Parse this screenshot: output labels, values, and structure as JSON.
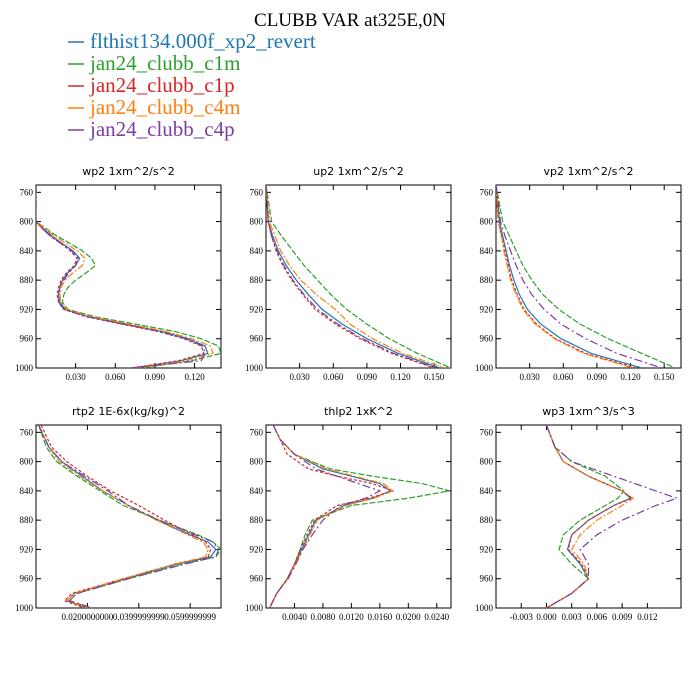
{
  "figure_title": "CLUBB VAR at325E,0N",
  "legend": [
    {
      "name": "flthist134.000f_xp2_revert",
      "color": "#1f77b4"
    },
    {
      "name": "jan24_clubb_c1m",
      "color": "#2ca02c"
    },
    {
      "name": "jan24_clubb_c1p",
      "color": "#d62728"
    },
    {
      "name": "jan24_clubb_c4m",
      "color": "#ff7f0e"
    },
    {
      "name": "jan24_clubb_c4p",
      "color": "#7b3f9e"
    }
  ],
  "chart_data": [
    {
      "type": "line",
      "title": "wp2  1xm^2/s^2",
      "xlim": [
        0,
        0.14
      ],
      "ylim": [
        750,
        1000
      ],
      "y_inverted": true,
      "xticks": [
        "0.030",
        "0.060",
        "0.090",
        "0.120"
      ],
      "yticks": [
        "760",
        "800",
        "840",
        "880",
        "920",
        "960",
        "1000"
      ],
      "y": [
        750,
        800,
        810,
        820,
        830,
        840,
        850,
        860,
        870,
        880,
        890,
        900,
        910,
        920,
        930,
        940,
        950,
        960,
        970,
        980,
        990,
        1000
      ],
      "series": [
        {
          "name": "flthist134.000f_xp2_revert",
          "values": [
            0,
            0,
            0.006,
            0.012,
            0.02,
            0.028,
            0.033,
            0.03,
            0.024,
            0.02,
            0.018,
            0.017,
            0.018,
            0.022,
            0.04,
            0.068,
            0.095,
            0.115,
            0.128,
            0.13,
            0.11,
            0.075
          ]
        },
        {
          "name": "jan24_clubb_c1m",
          "values": [
            0,
            0,
            0.008,
            0.016,
            0.026,
            0.035,
            0.042,
            0.045,
            0.038,
            0.03,
            0.024,
            0.021,
            0.02,
            0.024,
            0.045,
            0.075,
            0.105,
            0.125,
            0.138,
            0.14,
            0.118,
            0.08
          ]
        },
        {
          "name": "jan24_clubb_c1p",
          "values": [
            0,
            0,
            0.005,
            0.011,
            0.019,
            0.026,
            0.031,
            0.029,
            0.023,
            0.019,
            0.017,
            0.016,
            0.017,
            0.021,
            0.038,
            0.065,
            0.092,
            0.112,
            0.125,
            0.127,
            0.108,
            0.072
          ]
        },
        {
          "name": "jan24_clubb_c4m",
          "values": [
            0,
            0,
            0.007,
            0.014,
            0.023,
            0.031,
            0.037,
            0.035,
            0.028,
            0.022,
            0.019,
            0.018,
            0.019,
            0.023,
            0.042,
            0.07,
            0.098,
            0.118,
            0.132,
            0.134,
            0.114,
            0.078
          ]
        },
        {
          "name": "jan24_clubb_c4p",
          "values": [
            0,
            0,
            0.005,
            0.011,
            0.019,
            0.027,
            0.032,
            0.03,
            0.025,
            0.021,
            0.018,
            0.017,
            0.017,
            0.021,
            0.039,
            0.066,
            0.093,
            0.113,
            0.126,
            0.128,
            0.125,
            0.07
          ]
        }
      ]
    },
    {
      "type": "line",
      "title": "up2  1xm^2/s^2",
      "xlim": [
        0,
        0.165
      ],
      "ylim": [
        750,
        1000
      ],
      "y_inverted": true,
      "xticks": [
        "0.030",
        "0.060",
        "0.090",
        "0.120",
        "0.150"
      ],
      "yticks": [
        "760",
        "800",
        "840",
        "880",
        "920",
        "960",
        "1000"
      ],
      "y": [
        750,
        800,
        820,
        840,
        860,
        880,
        900,
        920,
        940,
        960,
        980,
        1000
      ],
      "series": [
        {
          "name": "flthist134.000f_xp2_revert",
          "values": [
            0,
            0.002,
            0.006,
            0.011,
            0.018,
            0.027,
            0.038,
            0.05,
            0.068,
            0.09,
            0.118,
            0.155
          ]
        },
        {
          "name": "jan24_clubb_c1m",
          "values": [
            0,
            0.005,
            0.014,
            0.024,
            0.034,
            0.046,
            0.058,
            0.072,
            0.09,
            0.11,
            0.135,
            0.165
          ]
        },
        {
          "name": "jan24_clubb_c1p",
          "values": [
            0,
            0.002,
            0.005,
            0.009,
            0.015,
            0.023,
            0.033,
            0.044,
            0.062,
            0.084,
            0.112,
            0.15
          ]
        },
        {
          "name": "jan24_clubb_c4m",
          "values": [
            0,
            0.003,
            0.008,
            0.013,
            0.021,
            0.031,
            0.045,
            0.062,
            0.075,
            0.095,
            0.122,
            0.16
          ]
        },
        {
          "name": "jan24_clubb_c4p",
          "values": [
            0,
            0.002,
            0.005,
            0.01,
            0.016,
            0.024,
            0.034,
            0.046,
            0.064,
            0.086,
            0.114,
            0.152
          ]
        }
      ]
    },
    {
      "type": "line",
      "title": "vp2  1xm^2/s^2",
      "xlim": [
        0,
        0.165
      ],
      "ylim": [
        750,
        1000
      ],
      "y_inverted": true,
      "xticks": [
        "0.030",
        "0.060",
        "0.090",
        "0.120",
        "0.150"
      ],
      "yticks": [
        "760",
        "800",
        "840",
        "880",
        "920",
        "960",
        "1000"
      ],
      "y": [
        750,
        800,
        820,
        840,
        860,
        880,
        900,
        920,
        940,
        960,
        980,
        1000
      ],
      "series": [
        {
          "name": "flthist134.000f_xp2_revert",
          "values": [
            0,
            0.003,
            0.006,
            0.009,
            0.012,
            0.016,
            0.021,
            0.028,
            0.04,
            0.058,
            0.085,
            0.13
          ]
        },
        {
          "name": "jan24_clubb_c1m",
          "values": [
            0,
            0.006,
            0.012,
            0.018,
            0.024,
            0.032,
            0.042,
            0.056,
            0.075,
            0.1,
            0.13,
            0.16
          ]
        },
        {
          "name": "jan24_clubb_c1p",
          "values": [
            0,
            0.002,
            0.005,
            0.008,
            0.011,
            0.014,
            0.019,
            0.025,
            0.036,
            0.053,
            0.08,
            0.125
          ]
        },
        {
          "name": "jan24_clubb_c4m",
          "values": [
            0,
            0.002,
            0.005,
            0.007,
            0.01,
            0.013,
            0.018,
            0.024,
            0.035,
            0.052,
            0.078,
            0.122
          ]
        },
        {
          "name": "jan24_clubb_c4p",
          "values": [
            0,
            0.004,
            0.008,
            0.013,
            0.018,
            0.024,
            0.032,
            0.043,
            0.058,
            0.08,
            0.108,
            0.148
          ]
        }
      ]
    },
    {
      "type": "line",
      "title": "rtp2  1E-6x(kg/kg)^2",
      "xlim": [
        0,
        0.072
      ],
      "ylim": [
        750,
        1000
      ],
      "y_inverted": true,
      "xticks": [
        "0.0200000000",
        "0.0399999999",
        "0.0599999999"
      ],
      "yticks": [
        "760",
        "800",
        "840",
        "880",
        "920",
        "960",
        "1000"
      ],
      "y": [
        750,
        780,
        800,
        820,
        840,
        860,
        880,
        900,
        910,
        920,
        930,
        940,
        960,
        980,
        990,
        1000
      ],
      "series": [
        {
          "name": "flthist134.000f_xp2_revert",
          "values": [
            0.001,
            0.005,
            0.01,
            0.018,
            0.026,
            0.036,
            0.047,
            0.06,
            0.067,
            0.07,
            0.068,
            0.055,
            0.035,
            0.015,
            0.012,
            0.02
          ]
        },
        {
          "name": "jan24_clubb_c1m",
          "values": [
            0.001,
            0.004,
            0.008,
            0.016,
            0.025,
            0.034,
            0.048,
            0.063,
            0.069,
            0.072,
            0.07,
            0.057,
            0.036,
            0.016,
            0.013,
            0.021
          ]
        },
        {
          "name": "jan24_clubb_c1p",
          "values": [
            0.002,
            0.006,
            0.012,
            0.02,
            0.029,
            0.04,
            0.05,
            0.061,
            0.066,
            0.068,
            0.067,
            0.054,
            0.034,
            0.014,
            0.011,
            0.019
          ]
        },
        {
          "name": "jan24_clubb_c4m",
          "values": [
            0.001,
            0.005,
            0.009,
            0.017,
            0.026,
            0.036,
            0.047,
            0.059,
            0.065,
            0.067,
            0.066,
            0.054,
            0.034,
            0.015,
            0.012,
            0.02
          ]
        },
        {
          "name": "jan24_clubb_c4p",
          "values": [
            0.001,
            0.005,
            0.01,
            0.019,
            0.028,
            0.036,
            0.048,
            0.062,
            0.069,
            0.071,
            0.07,
            0.058,
            0.036,
            0.016,
            0.013,
            0.022
          ]
        }
      ]
    },
    {
      "type": "line",
      "title": "thlp2  1xK^2",
      "xlim": [
        0,
        0.026
      ],
      "ylim": [
        750,
        1000
      ],
      "y_inverted": true,
      "xticks": [
        "0.0040",
        "0.0080",
        "0.0120",
        "0.0160",
        "0.0200",
        "0.0240"
      ],
      "yticks": [
        "760",
        "800",
        "840",
        "880",
        "920",
        "960",
        "1000"
      ],
      "y": [
        750,
        770,
        790,
        810,
        820,
        830,
        840,
        850,
        860,
        880,
        900,
        920,
        940,
        960,
        980,
        1000
      ],
      "series": [
        {
          "name": "flthist134.000f_xp2_revert",
          "values": [
            0.001,
            0.002,
            0.004,
            0.008,
            0.012,
            0.016,
            0.0175,
            0.015,
            0.011,
            0.007,
            0.006,
            0.005,
            0.004,
            0.003,
            0.0015,
            0.0005
          ]
        },
        {
          "name": "jan24_clubb_c1m",
          "values": [
            0.001,
            0.002,
            0.004,
            0.009,
            0.015,
            0.022,
            0.0258,
            0.02,
            0.012,
            0.0065,
            0.0055,
            0.0048,
            0.004,
            0.003,
            0.0015,
            0.0005
          ]
        },
        {
          "name": "jan24_clubb_c1p",
          "values": [
            0.001,
            0.002,
            0.003,
            0.006,
            0.01,
            0.015,
            0.0178,
            0.0145,
            0.01,
            0.0068,
            0.0058,
            0.0048,
            0.004,
            0.003,
            0.0015,
            0.0005
          ]
        },
        {
          "name": "jan24_clubb_c4m",
          "values": [
            0.001,
            0.002,
            0.004,
            0.0085,
            0.0125,
            0.0165,
            0.0178,
            0.0152,
            0.0112,
            0.0072,
            0.0062,
            0.0052,
            0.0041,
            0.0031,
            0.0015,
            0.0005
          ]
        },
        {
          "name": "jan24_clubb_c4p",
          "values": [
            0.001,
            0.002,
            0.004,
            0.007,
            0.01,
            0.013,
            0.016,
            0.014,
            0.0105,
            0.008,
            0.0065,
            0.0052,
            0.0042,
            0.0031,
            0.0015,
            0.0005
          ]
        }
      ]
    },
    {
      "type": "line",
      "title": "wp3  1xm^3/s^3",
      "xlim": [
        -0.006,
        0.016
      ],
      "ylim": [
        750,
        1000
      ],
      "y_inverted": true,
      "xticks": [
        "-0.003",
        "0.000",
        "0.003",
        "0.006",
        "0.009",
        "0.012"
      ],
      "yticks": [
        "760",
        "800",
        "840",
        "880",
        "920",
        "960",
        "1000"
      ],
      "y": [
        750,
        780,
        800,
        820,
        840,
        850,
        860,
        880,
        900,
        920,
        940,
        960,
        980,
        1000
      ],
      "series": [
        {
          "name": "flthist134.000f_xp2_revert",
          "values": [
            0.0,
            0.001,
            0.002,
            0.005,
            0.009,
            0.01,
            0.008,
            0.005,
            0.003,
            0.0025,
            0.004,
            0.005,
            0.003,
            0.0
          ]
        },
        {
          "name": "jan24_clubb_c1m",
          "values": [
            0.0,
            0.001,
            0.003,
            0.007,
            0.0092,
            0.0085,
            0.007,
            0.004,
            0.002,
            0.0015,
            0.003,
            0.005,
            0.003,
            0.0
          ]
        },
        {
          "name": "jan24_clubb_c1p",
          "values": [
            0.0,
            0.001,
            0.002,
            0.005,
            0.009,
            0.0102,
            0.008,
            0.005,
            0.003,
            0.0026,
            0.0042,
            0.005,
            0.003,
            0.0
          ]
        },
        {
          "name": "jan24_clubb_c4m",
          "values": [
            0.0,
            0.001,
            0.002,
            0.005,
            0.009,
            0.0103,
            0.009,
            0.006,
            0.004,
            0.003,
            0.0045,
            0.005,
            0.003,
            0.0
          ]
        },
        {
          "name": "jan24_clubb_c4p",
          "values": [
            0.0,
            0.001,
            0.003,
            0.008,
            0.013,
            0.0155,
            0.013,
            0.009,
            0.006,
            0.004,
            0.005,
            0.005,
            0.003,
            0.0
          ]
        }
      ]
    }
  ]
}
